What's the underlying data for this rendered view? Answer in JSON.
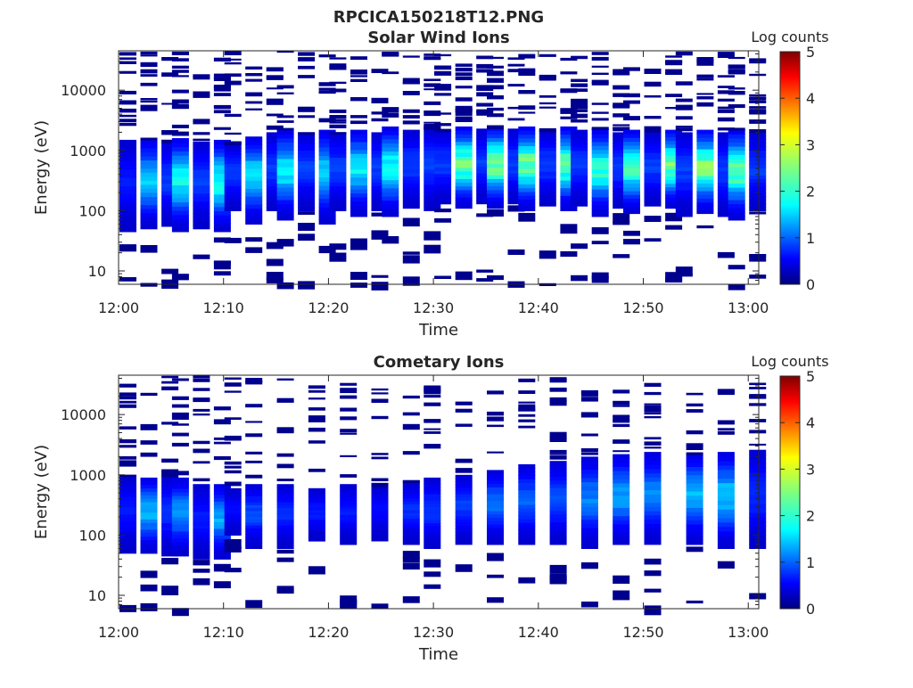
{
  "figure": {
    "filename_title": "RPCICA150218T12.PNG"
  },
  "colorbar": {
    "label": "Log counts",
    "ticks": [
      "0",
      "1",
      "2",
      "3",
      "4",
      "5"
    ],
    "range": [
      0,
      5
    ],
    "colormap": "jet"
  },
  "chart_data": [
    {
      "type": "heatmap",
      "title": "Solar Wind Ions",
      "xlabel": "Time",
      "ylabel": "Energy (eV)",
      "x_ticks": [
        "12:00",
        "12:10",
        "12:20",
        "12:30",
        "12:40",
        "12:50",
        "13:00"
      ],
      "y_ticks": [
        "10",
        "100",
        "1000",
        "10000"
      ],
      "y_scale": "log",
      "ylim": [
        6,
        45000
      ],
      "xlim": [
        "12:00",
        "13:01"
      ],
      "colorbar_label": "Log counts",
      "columns": [
        {
          "t": "12:00",
          "core": [
            45,
            1500
          ],
          "peak": 0.8
        },
        {
          "t": "12:02",
          "core": [
            50,
            1500
          ],
          "peak": 1.8
        },
        {
          "t": "12:04",
          "core": [
            55,
            1500
          ],
          "peak": 1.0
        },
        {
          "t": "12:05",
          "core": [
            45,
            1600
          ],
          "peak": 2.1
        },
        {
          "t": "12:07",
          "core": [
            50,
            1400
          ],
          "peak": 1.0
        },
        {
          "t": "12:09",
          "core": [
            45,
            1500
          ],
          "peak": 2.2
        },
        {
          "t": "12:10",
          "core": [
            100,
            1400
          ],
          "peak": 1.0
        },
        {
          "t": "12:12",
          "core": [
            60,
            1700
          ],
          "peak": 2.0
        },
        {
          "t": "12:14",
          "core": [
            100,
            2000
          ],
          "peak": 1.0
        },
        {
          "t": "12:15",
          "core": [
            70,
            2200
          ],
          "peak": 2.0
        },
        {
          "t": "12:17",
          "core": [
            100,
            2000
          ],
          "peak": 1.0
        },
        {
          "t": "12:19",
          "core": [
            60,
            2200
          ],
          "peak": 1.9
        },
        {
          "t": "12:20",
          "core": [
            100,
            2000
          ],
          "peak": 1.0
        },
        {
          "t": "12:22",
          "core": [
            80,
            2200
          ],
          "peak": 2.0
        },
        {
          "t": "12:24",
          "core": [
            100,
            2000
          ],
          "peak": 1.0
        },
        {
          "t": "12:25",
          "core": [
            80,
            2500
          ],
          "peak": 2.2
        },
        {
          "t": "12:27",
          "core": [
            110,
            2200
          ],
          "peak": 1.0
        },
        {
          "t": "12:29",
          "core": [
            100,
            2400
          ],
          "peak": 1.0
        },
        {
          "t": "12:30",
          "core": [
            130,
            2200
          ],
          "peak": 1.0
        },
        {
          "t": "12:32",
          "core": [
            110,
            2500
          ],
          "peak": 2.6
        },
        {
          "t": "12:34",
          "core": [
            130,
            2300
          ],
          "peak": 1.0
        },
        {
          "t": "12:35",
          "core": [
            110,
            2500
          ],
          "peak": 2.8
        },
        {
          "t": "12:37",
          "core": [
            130,
            2300
          ],
          "peak": 1.0
        },
        {
          "t": "12:38",
          "core": [
            100,
            2500
          ],
          "peak": 2.7
        },
        {
          "t": "12:40",
          "core": [
            120,
            2200
          ],
          "peak": 1.0
        },
        {
          "t": "12:42",
          "core": [
            100,
            2500
          ],
          "peak": 2.6
        },
        {
          "t": "12:43",
          "core": [
            120,
            2200
          ],
          "peak": 1.0
        },
        {
          "t": "12:45",
          "core": [
            80,
            2200
          ],
          "peak": 2.3
        },
        {
          "t": "12:47",
          "core": [
            110,
            2000
          ],
          "peak": 1.0
        },
        {
          "t": "12:48",
          "core": [
            90,
            2200
          ],
          "peak": 2.4
        },
        {
          "t": "12:50",
          "core": [
            120,
            2000
          ],
          "peak": 1.0
        },
        {
          "t": "12:52",
          "core": [
            110,
            2200
          ],
          "peak": 2.7
        },
        {
          "t": "12:53",
          "core": [
            80,
            2000
          ],
          "peak": 1.0
        },
        {
          "t": "12:55",
          "core": [
            90,
            2200
          ],
          "peak": 2.8
        },
        {
          "t": "12:57",
          "core": [
            80,
            2000
          ],
          "peak": 1.0
        },
        {
          "t": "12:58",
          "core": [
            70,
            2200
          ],
          "peak": 2.6
        },
        {
          "t": "13:00",
          "core": [
            100,
            2000
          ],
          "peak": 1.0
        }
      ]
    },
    {
      "type": "heatmap",
      "title": "Cometary Ions",
      "xlabel": "Time",
      "ylabel": "Energy (eV)",
      "x_ticks": [
        "12:00",
        "12:10",
        "12:20",
        "12:30",
        "12:40",
        "12:50",
        "13:00"
      ],
      "y_ticks": [
        "10",
        "100",
        "1000",
        "10000"
      ],
      "y_scale": "log",
      "ylim": [
        6,
        45000
      ],
      "xlim": [
        "12:00",
        "13:01"
      ],
      "colorbar_label": "Log counts",
      "columns": [
        {
          "t": "12:00",
          "core": [
            50,
            1000
          ],
          "peak": 0.8
        },
        {
          "t": "12:02",
          "core": [
            50,
            900
          ],
          "peak": 1.7
        },
        {
          "t": "12:04",
          "core": [
            45,
            1000
          ],
          "peak": 0.9
        },
        {
          "t": "12:05",
          "core": [
            45,
            900
          ],
          "peak": 1.5
        },
        {
          "t": "12:07",
          "core": [
            40,
            700
          ],
          "peak": 0.8
        },
        {
          "t": "12:09",
          "core": [
            40,
            700
          ],
          "peak": 1.6
        },
        {
          "t": "12:10",
          "core": [
            100,
            600
          ],
          "peak": 0.7
        },
        {
          "t": "12:12",
          "core": [
            60,
            700
          ],
          "peak": 1.1
        },
        {
          "t": "12:15",
          "core": [
            60,
            700
          ],
          "peak": 0.9
        },
        {
          "t": "12:18",
          "core": [
            80,
            600
          ],
          "peak": 0.8
        },
        {
          "t": "12:21",
          "core": [
            70,
            700
          ],
          "peak": 0.8
        },
        {
          "t": "12:24",
          "core": [
            80,
            700
          ],
          "peak": 0.7
        },
        {
          "t": "12:27",
          "core": [
            70,
            800
          ],
          "peak": 0.9
        },
        {
          "t": "12:29",
          "core": [
            60,
            900
          ],
          "peak": 1.0
        },
        {
          "t": "12:32",
          "core": [
            70,
            1000
          ],
          "peak": 1.0
        },
        {
          "t": "12:35",
          "core": [
            70,
            1200
          ],
          "peak": 1.3
        },
        {
          "t": "12:38",
          "core": [
            70,
            1500
          ],
          "peak": 1.2
        },
        {
          "t": "12:41",
          "core": [
            70,
            1700
          ],
          "peak": 1.1
        },
        {
          "t": "12:44",
          "core": [
            60,
            2000
          ],
          "peak": 1.4
        },
        {
          "t": "12:47",
          "core": [
            70,
            2200
          ],
          "peak": 1.6
        },
        {
          "t": "12:50",
          "core": [
            70,
            2400
          ],
          "peak": 1.4
        },
        {
          "t": "12:54",
          "core": [
            70,
            2200
          ],
          "peak": 1.7
        },
        {
          "t": "12:57",
          "core": [
            60,
            2400
          ],
          "peak": 1.8
        },
        {
          "t": "13:00",
          "core": [
            60,
            2600
          ],
          "peak": 0.9
        }
      ]
    }
  ]
}
